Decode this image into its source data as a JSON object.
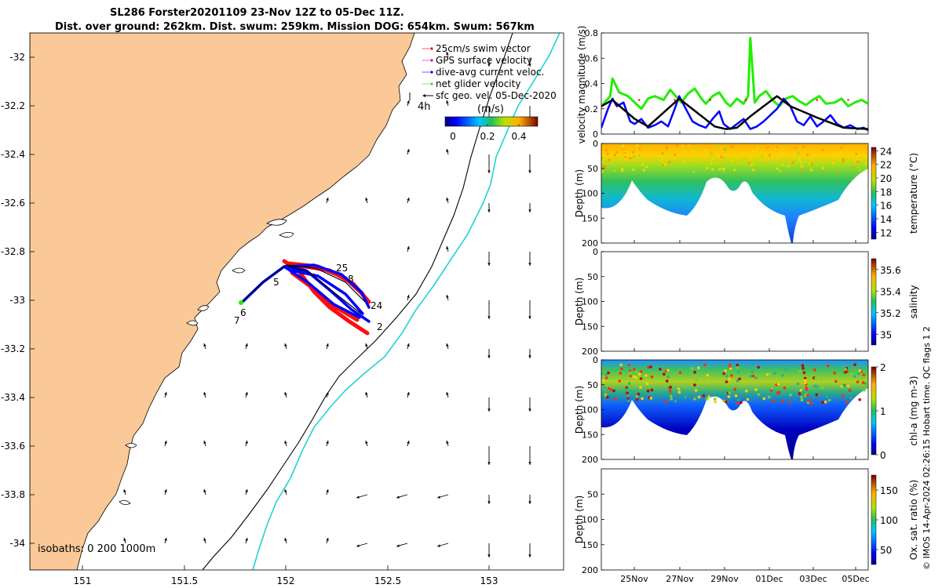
{
  "title_line1": "SL286 Forster20201109 23-Nov 12Z to 05-Dec 11Z.",
  "title_line2": "Dist. over ground: 262km. Dist. swum: 259km. Mission DOG: 654km. Swum: 567km",
  "footer": "© IMOS 14-Apr-2024 02:26:15 Hobart time. QC flags 1  2",
  "colors": {
    "land": "#fbc997",
    "shelf_1000m": "#22d3d3",
    "swim_vector": "#ff0000",
    "gps_velocity": "#d400d4",
    "dive_avg": "#0000ff",
    "net_velocity": "#22ee00",
    "sfc_geo": "#000000",
    "vel_black": "#000000"
  },
  "map": {
    "xlabels": [
      "151",
      "151.5",
      "152",
      "152.5",
      "153"
    ],
    "ylabels": [
      "-32",
      "-32.2",
      "-32.4",
      "-32.6",
      "-32.8",
      "-33",
      "-33.2",
      "-33.4",
      "-33.6",
      "-33.8",
      "-34"
    ],
    "isobaths_label": "isobaths: 0  200  1000m",
    "scale_label": "4h",
    "track_labels": [
      {
        "text": "25"
      },
      {
        "text": "8"
      },
      {
        "text": "5"
      },
      {
        "text": "24"
      },
      {
        "text": "2"
      },
      {
        "text": "6"
      },
      {
        "text": "7"
      }
    ],
    "legend": [
      {
        "label": "25cm/s swim vector",
        "color": "#ff0000",
        "marker": "dot"
      },
      {
        "label": "GPS surface velocity",
        "color": "#d400d4",
        "marker": "dot"
      },
      {
        "label": "dive-avg current veloc.",
        "color": "#0000ff",
        "marker": "dot"
      },
      {
        "label": "net glider velocity",
        "color": "#22ee00",
        "marker": "dot"
      },
      {
        "label": "sfc geo. vel. 05-Dec-2020",
        "color": "#000000",
        "marker": "arrow"
      }
    ],
    "colorbar": {
      "title": "(m/s)",
      "ticks": [
        "0",
        "0.2",
        "0.4"
      ]
    }
  },
  "chart_data": [
    {
      "type": "line",
      "title": "",
      "ylabel": "velocity magnitude (m/s)",
      "ylim": [
        0,
        0.8
      ],
      "yticks": [
        "0",
        "0.2",
        "0.4",
        "0.6",
        "0.8"
      ],
      "xlim": [
        23.5,
        35.5
      ],
      "grid": false,
      "series": [
        {
          "color": "#22ee00",
          "x": [
            23.5,
            23.9,
            24.0,
            24.3,
            24.7,
            25.0,
            25.3,
            25.6,
            25.9,
            26.3,
            26.6,
            26.9,
            27.1,
            27.4,
            27.7,
            28.0,
            28.2,
            28.5,
            28.8,
            29.1,
            29.3,
            29.6,
            29.9,
            30.1,
            30.2,
            30.4,
            30.6,
            30.9,
            31.2,
            31.5,
            31.8,
            32.1,
            32.4,
            32.7,
            33.0,
            33.3,
            33.6,
            34.0,
            34.3,
            34.6,
            34.9,
            35.2,
            35.5
          ],
          "y": [
            0.22,
            0.3,
            0.44,
            0.33,
            0.3,
            0.25,
            0.2,
            0.28,
            0.3,
            0.27,
            0.35,
            0.29,
            0.25,
            0.32,
            0.36,
            0.28,
            0.24,
            0.3,
            0.33,
            0.25,
            0.22,
            0.28,
            0.24,
            0.3,
            0.76,
            0.25,
            0.3,
            0.34,
            0.27,
            0.22,
            0.28,
            0.3,
            0.26,
            0.23,
            0.27,
            0.3,
            0.24,
            0.25,
            0.28,
            0.22,
            0.25,
            0.27,
            0.24
          ]
        },
        {
          "color": "#0000ff",
          "x": [
            23.5,
            23.8,
            24.0,
            24.2,
            24.5,
            24.8,
            25.0,
            25.3,
            25.6,
            25.9,
            26.2,
            26.5,
            26.8,
            27.0,
            27.3,
            27.6,
            27.9,
            28.2,
            28.5,
            28.8,
            29.0,
            29.3,
            29.6,
            29.9,
            30.2,
            30.5,
            30.8,
            31.1,
            31.4,
            31.7,
            32.0,
            32.3,
            32.6,
            32.9,
            33.2,
            33.5,
            33.8,
            34.1,
            34.4,
            34.7,
            35.0,
            35.3,
            35.5
          ],
          "y": [
            0.05,
            0.2,
            0.28,
            0.22,
            0.25,
            0.1,
            0.08,
            0.12,
            0.05,
            0.07,
            0.1,
            0.06,
            0.2,
            0.3,
            0.2,
            0.1,
            0.07,
            0.05,
            0.12,
            0.18,
            0.08,
            0.04,
            0.08,
            0.12,
            0.04,
            0.06,
            0.1,
            0.15,
            0.2,
            0.28,
            0.22,
            0.1,
            0.07,
            0.14,
            0.06,
            0.1,
            0.15,
            0.08,
            0.05,
            0.07,
            0.04,
            0.05,
            0.03
          ]
        },
        {
          "color": "#000000",
          "x": [
            23.5,
            24.0,
            25.0,
            25.6,
            27.0,
            28.6,
            29.1,
            29.6,
            30.2,
            31.4,
            32.0,
            33.2,
            34.4,
            35.5
          ],
          "y": [
            0.22,
            0.27,
            0.12,
            0.06,
            0.28,
            0.06,
            0.04,
            0.05,
            0.14,
            0.3,
            0.22,
            0.13,
            0.05,
            0.04
          ]
        }
      ]
    },
    {
      "type": "heatmap",
      "ylabel": "Depth (m)",
      "yticks": [
        "0",
        "50",
        "100",
        "150",
        "200"
      ],
      "colorbar_label": "temperature (°C)",
      "colorbar_ticks": [
        "12",
        "14",
        "16",
        "18",
        "20",
        "22",
        "24"
      ],
      "clim": [
        11,
        24.5
      ]
    },
    {
      "type": "heatmap",
      "ylabel": "Depth (m)",
      "yticks": [
        "0",
        "50",
        "100",
        "150",
        "200"
      ],
      "colorbar_label": "salinity",
      "colorbar_ticks": [
        "35",
        "35.2",
        "35.4",
        "35.6"
      ],
      "clim": [
        34.9,
        35.7
      ]
    },
    {
      "type": "heatmap",
      "ylabel": "Depth (m)",
      "yticks": [
        "0",
        "50",
        "100",
        "150",
        "200"
      ],
      "colorbar_label": "chl-a (mg m-3)",
      "colorbar_ticks": [
        "0",
        "1",
        "2"
      ],
      "clim": [
        0,
        2
      ]
    },
    {
      "type": "heatmap",
      "ylabel": "Depth (m)",
      "yticks": [
        "50",
        "100",
        "150",
        "200"
      ],
      "colorbar_label": "Ox. sat. ratio (%)",
      "colorbar_ticks": [
        "50",
        "100",
        "150"
      ],
      "clim": [
        25,
        175
      ]
    }
  ],
  "time_axis": {
    "labels": [
      "25Nov",
      "27Nov",
      "29Nov",
      "01Dec",
      "03Dec",
      "05Dec"
    ]
  }
}
